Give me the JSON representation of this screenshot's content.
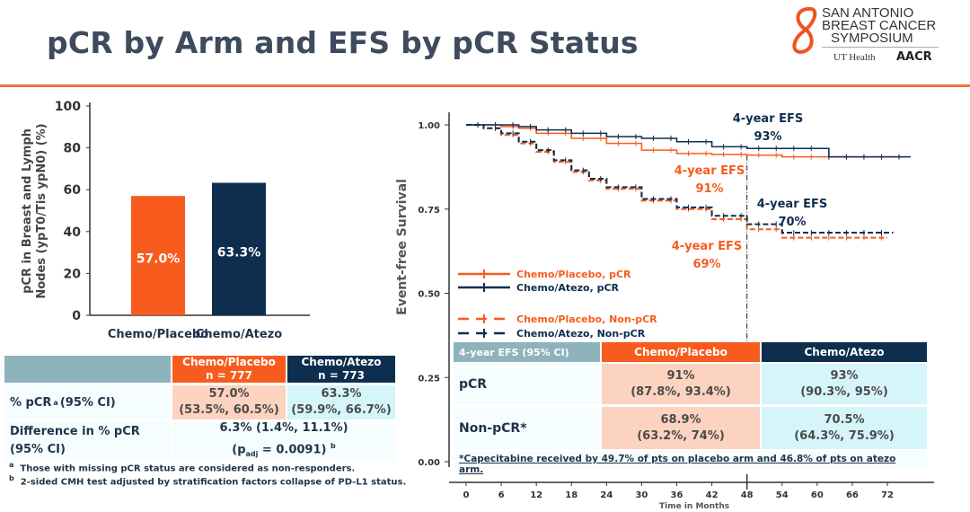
{
  "title": "pCR by Arm and EFS by pCR Status",
  "logo": {
    "line1": "SAN ANTONIO",
    "line2": "BREAST CANCER",
    "line3": "SYMPOSIUM",
    "sub1": "UT Health",
    "sub2": "AACR"
  },
  "colors": {
    "placebo": "#f75c1e",
    "atezo": "#0e2e4f",
    "label_cell": "#8fb3bc",
    "placebo_light": "#fcd3c0",
    "atezo_light": "#d6f5fb",
    "accent_rule": "#f0703a"
  },
  "chart_data": [
    {
      "type": "bar",
      "categories": [
        "Chemo/Placebo",
        "Chemo/Atezo"
      ],
      "values": [
        57.0,
        63.3
      ],
      "data_labels": [
        "57.0%",
        "63.3%"
      ],
      "ylabel_line1": "pCR in Breast and Lymph",
      "ylabel_line2": "Nodes (ypT0/Tis ypN0) (%)",
      "ylim": [
        0,
        100
      ],
      "yticks": [
        "0",
        "20",
        "40",
        "60",
        "80",
        "100"
      ],
      "grid": false
    },
    {
      "type": "line",
      "ylabel": "Event-free Survival",
      "xlabel": "Time in Months",
      "xlim": [
        0,
        78
      ],
      "ylim": [
        0,
        1
      ],
      "xticks": [
        "0",
        "6",
        "12",
        "18",
        "24",
        "30",
        "36",
        "42",
        "48",
        "54",
        "60",
        "66",
        "72"
      ],
      "yticks": [
        "0.00",
        "0.25",
        "0.50",
        "0.75",
        "1.00"
      ],
      "reference_line_x": 48,
      "legend_placement": "bottom-left",
      "series": [
        {
          "name": "Chemo/Placebo, pCR",
          "arm": "placebo",
          "dashed": false,
          "x": [
            0,
            6,
            9,
            12,
            18,
            24,
            30,
            36,
            42,
            48,
            54,
            75
          ],
          "y": [
            1,
            0.995,
            0.99,
            0.975,
            0.96,
            0.945,
            0.925,
            0.915,
            0.912,
            0.91,
            0.905,
            0.905
          ]
        },
        {
          "name": "Chemo/Atezo, pCR",
          "arm": "atezo",
          "dashed": false,
          "x": [
            0,
            9,
            12,
            18,
            24,
            30,
            36,
            42,
            48,
            54,
            60,
            62,
            76
          ],
          "y": [
            1,
            0.995,
            0.985,
            0.975,
            0.965,
            0.96,
            0.95,
            0.935,
            0.93,
            0.93,
            0.93,
            0.905,
            0.905
          ]
        },
        {
          "name": "Chemo/Placebo, Non-pCR",
          "arm": "placebo",
          "dashed": true,
          "x": [
            0,
            3,
            6,
            9,
            12,
            15,
            18,
            21,
            24,
            30,
            36,
            42,
            48,
            54,
            72
          ],
          "y": [
            1,
            0.99,
            0.97,
            0.945,
            0.92,
            0.89,
            0.86,
            0.835,
            0.81,
            0.775,
            0.75,
            0.72,
            0.69,
            0.665,
            0.665
          ]
        },
        {
          "name": "Chemo/Atezo, Non-pCR",
          "arm": "atezo",
          "dashed": true,
          "x": [
            0,
            3,
            6,
            9,
            12,
            15,
            18,
            21,
            24,
            30,
            36,
            42,
            48,
            54,
            73
          ],
          "y": [
            1,
            0.99,
            0.975,
            0.95,
            0.925,
            0.895,
            0.865,
            0.84,
            0.815,
            0.78,
            0.755,
            0.73,
            0.705,
            0.68,
            0.68
          ]
        }
      ],
      "annotations": [
        {
          "line1": "4-year EFS",
          "line2": "93%",
          "arm": "atezo"
        },
        {
          "line1": "4-year EFS",
          "line2": "91%",
          "arm": "placebo"
        },
        {
          "line1": "4-year EFS",
          "line2": "70%",
          "arm": "atezo"
        },
        {
          "line1": "4-year EFS",
          "line2": "69%",
          "arm": "placebo"
        }
      ]
    }
  ],
  "pcr_table": {
    "headers": [
      {
        "arm": "Chemo/Placebo",
        "n": "n = 777"
      },
      {
        "arm": "Chemo/Atezo",
        "n": "n = 773"
      }
    ],
    "row1": {
      "label": "% pCR",
      "sup": "a",
      "label_suffix": " (95% CI)",
      "placebo": "57.0%",
      "placebo_ci": "(53.5%, 60.5%)",
      "atezo": "63.3%",
      "atezo_ci": "(59.9%, 66.7%)"
    },
    "row2": {
      "label1": "Difference in % pCR",
      "label2": "(95% CI)",
      "value": "6.3% (1.4%, 11.1%)",
      "p_pre": "(p",
      "p_sub": "adj",
      "p_post": " = 0.0091)",
      "p_sup": "b"
    },
    "footnotes": [
      {
        "mark": "a",
        "text": "Those with missing pCR status are considered as non-responders."
      },
      {
        "mark": "b",
        "text": "2-sided CMH test adjusted by stratification factors collapse of PD-L1 status."
      }
    ]
  },
  "efs_table": {
    "header_label": "4-year EFS (95% CI)",
    "headers": [
      "Chemo/Placebo",
      "Chemo/Atezo"
    ],
    "rows": [
      {
        "label": "pCR",
        "placebo": "91%",
        "placebo_ci": "(87.8%, 93.4%)",
        "atezo": "93%",
        "atezo_ci": "(90.3%, 95%)"
      },
      {
        "label": "Non-pCR*",
        "placebo": "68.9%",
        "placebo_ci": "(63.2%, 74%)",
        "atezo": "70.5%",
        "atezo_ci": "(64.3%, 75.9%)"
      }
    ],
    "footnote": "*Capecitabine received by 49.7% of pts on placebo arm and 46.8% of pts on atezo arm."
  }
}
